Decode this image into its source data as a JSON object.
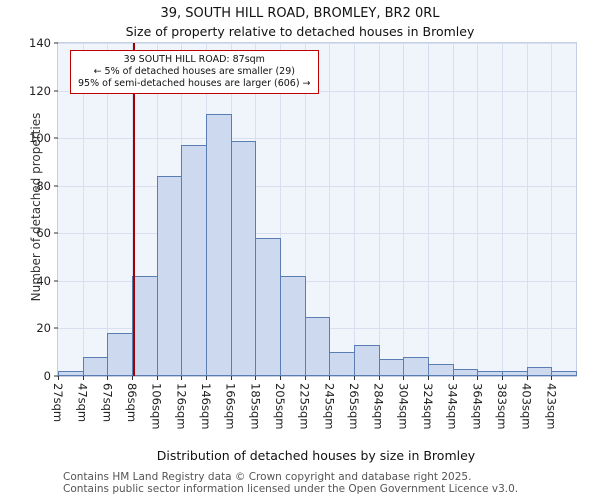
{
  "title": "39, SOUTH HILL ROAD, BROMLEY, BR2 0RL",
  "subtitle": "Size of property relative to detached houses in Bromley",
  "footer": {
    "line1": "Contains HM Land Registry data © Crown copyright and database right 2025.",
    "line2": "Contains public sector information licensed under the Open Government Licence v3.0."
  },
  "chart_data": {
    "type": "bar",
    "title": "39, SOUTH HILL ROAD, BROMLEY, BR2 0RL",
    "subtitle": "Size of property relative to detached houses in Bromley",
    "xlabel": "Distribution of detached houses by size in Bromley",
    "ylabel": "Number of detached properties",
    "categories": [
      "27sqm",
      "47sqm",
      "67sqm",
      "86sqm",
      "106sqm",
      "126sqm",
      "146sqm",
      "166sqm",
      "185sqm",
      "205sqm",
      "225sqm",
      "245sqm",
      "265sqm",
      "284sqm",
      "304sqm",
      "324sqm",
      "344sqm",
      "364sqm",
      "383sqm",
      "403sqm",
      "423sqm"
    ],
    "values": [
      2,
      8,
      18,
      42,
      84,
      97,
      110,
      99,
      58,
      42,
      25,
      10,
      13,
      7,
      8,
      5,
      3,
      2,
      2,
      4,
      2
    ],
    "ylim": [
      0,
      140
    ],
    "y_ticks": [
      0,
      20,
      40,
      60,
      80,
      100,
      120,
      140
    ],
    "grid": "on",
    "bar_fill": "#cdd9ee",
    "bar_edge": "#5a7db3",
    "marker": {
      "value_sqm": 87,
      "color": "#a00000"
    },
    "annotation": [
      "39 SOUTH HILL ROAD: 87sqm",
      "← 5% of detached houses are smaller (29)",
      "95% of semi-detached houses are larger (606) →"
    ]
  }
}
